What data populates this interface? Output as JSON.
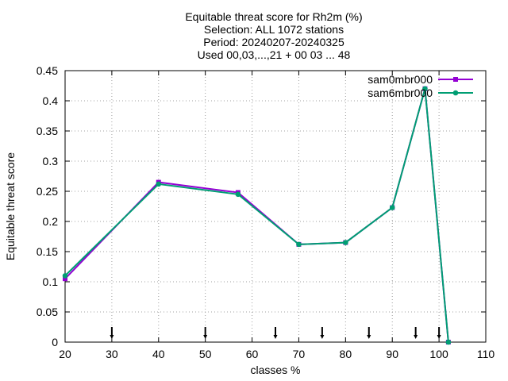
{
  "chart_data": {
    "type": "line",
    "title_lines": [
      "Equitable threat score  for Rh2m (%)",
      "Selection: ALL   1072 stations",
      "Period: 20240207-20240325",
      "Used 00,03,...,21 + 00 03 ... 48"
    ],
    "xlabel": "classes %",
    "ylabel": "Equitable threat score",
    "xlim": [
      20,
      110
    ],
    "ylim": [
      0,
      0.45
    ],
    "xticks": [
      20,
      30,
      40,
      50,
      60,
      70,
      80,
      90,
      100,
      110
    ],
    "yticks": [
      0,
      0.05,
      0.1,
      0.15,
      0.2,
      0.25,
      0.3,
      0.35,
      0.4,
      0.45
    ],
    "ytick_labels": [
      "0",
      "0.05",
      "0.1",
      "0.15",
      "0.2",
      "0.25",
      "0.3",
      "0.35",
      "0.4",
      "0.45"
    ],
    "grid": true,
    "legend_position": "top-right",
    "markers_x": [
      30,
      50,
      65,
      75,
      85,
      95,
      100
    ],
    "series": [
      {
        "name": "sam0mbr000",
        "color": "#9400d3",
        "x": [
          20,
          40,
          57,
          70,
          80,
          90,
          97,
          102
        ],
        "y": [
          0.105,
          0.265,
          0.248,
          0.162,
          0.165,
          0.223,
          0.42,
          0.0
        ]
      },
      {
        "name": "sam6mbr000",
        "color": "#009e73",
        "x": [
          20,
          40,
          57,
          70,
          80,
          90,
          97,
          102
        ],
        "y": [
          0.11,
          0.262,
          0.245,
          0.162,
          0.165,
          0.223,
          0.42,
          0.0
        ]
      }
    ]
  }
}
